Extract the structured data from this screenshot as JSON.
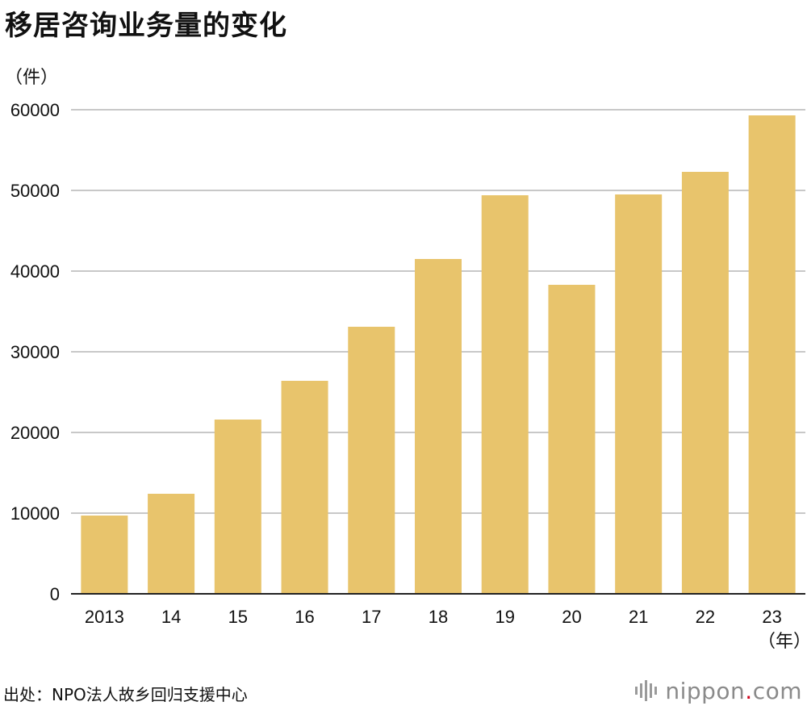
{
  "title": "移居咨询业务量的变化",
  "source": "出处：NPO法人故乡回归支援中心",
  "logo": {
    "name": "nippon",
    "dot": ".",
    "suffix": "com"
  },
  "chart_data": {
    "type": "bar",
    "unit_label": "（件）",
    "x_unit_label": "（年）",
    "categories": [
      "2013",
      "14",
      "15",
      "16",
      "17",
      "18",
      "19",
      "20",
      "21",
      "22",
      "23"
    ],
    "values": [
      9700,
      12400,
      21600,
      26400,
      33100,
      41500,
      49400,
      38300,
      49500,
      52300,
      59300
    ],
    "ylim": [
      0,
      60000
    ],
    "yticks": [
      "0",
      "10000",
      "20000",
      "30000",
      "40000",
      "50000",
      "60000"
    ],
    "grid": true,
    "bar_color": "#e8c46c",
    "grid_color": "#c8c8c8"
  }
}
